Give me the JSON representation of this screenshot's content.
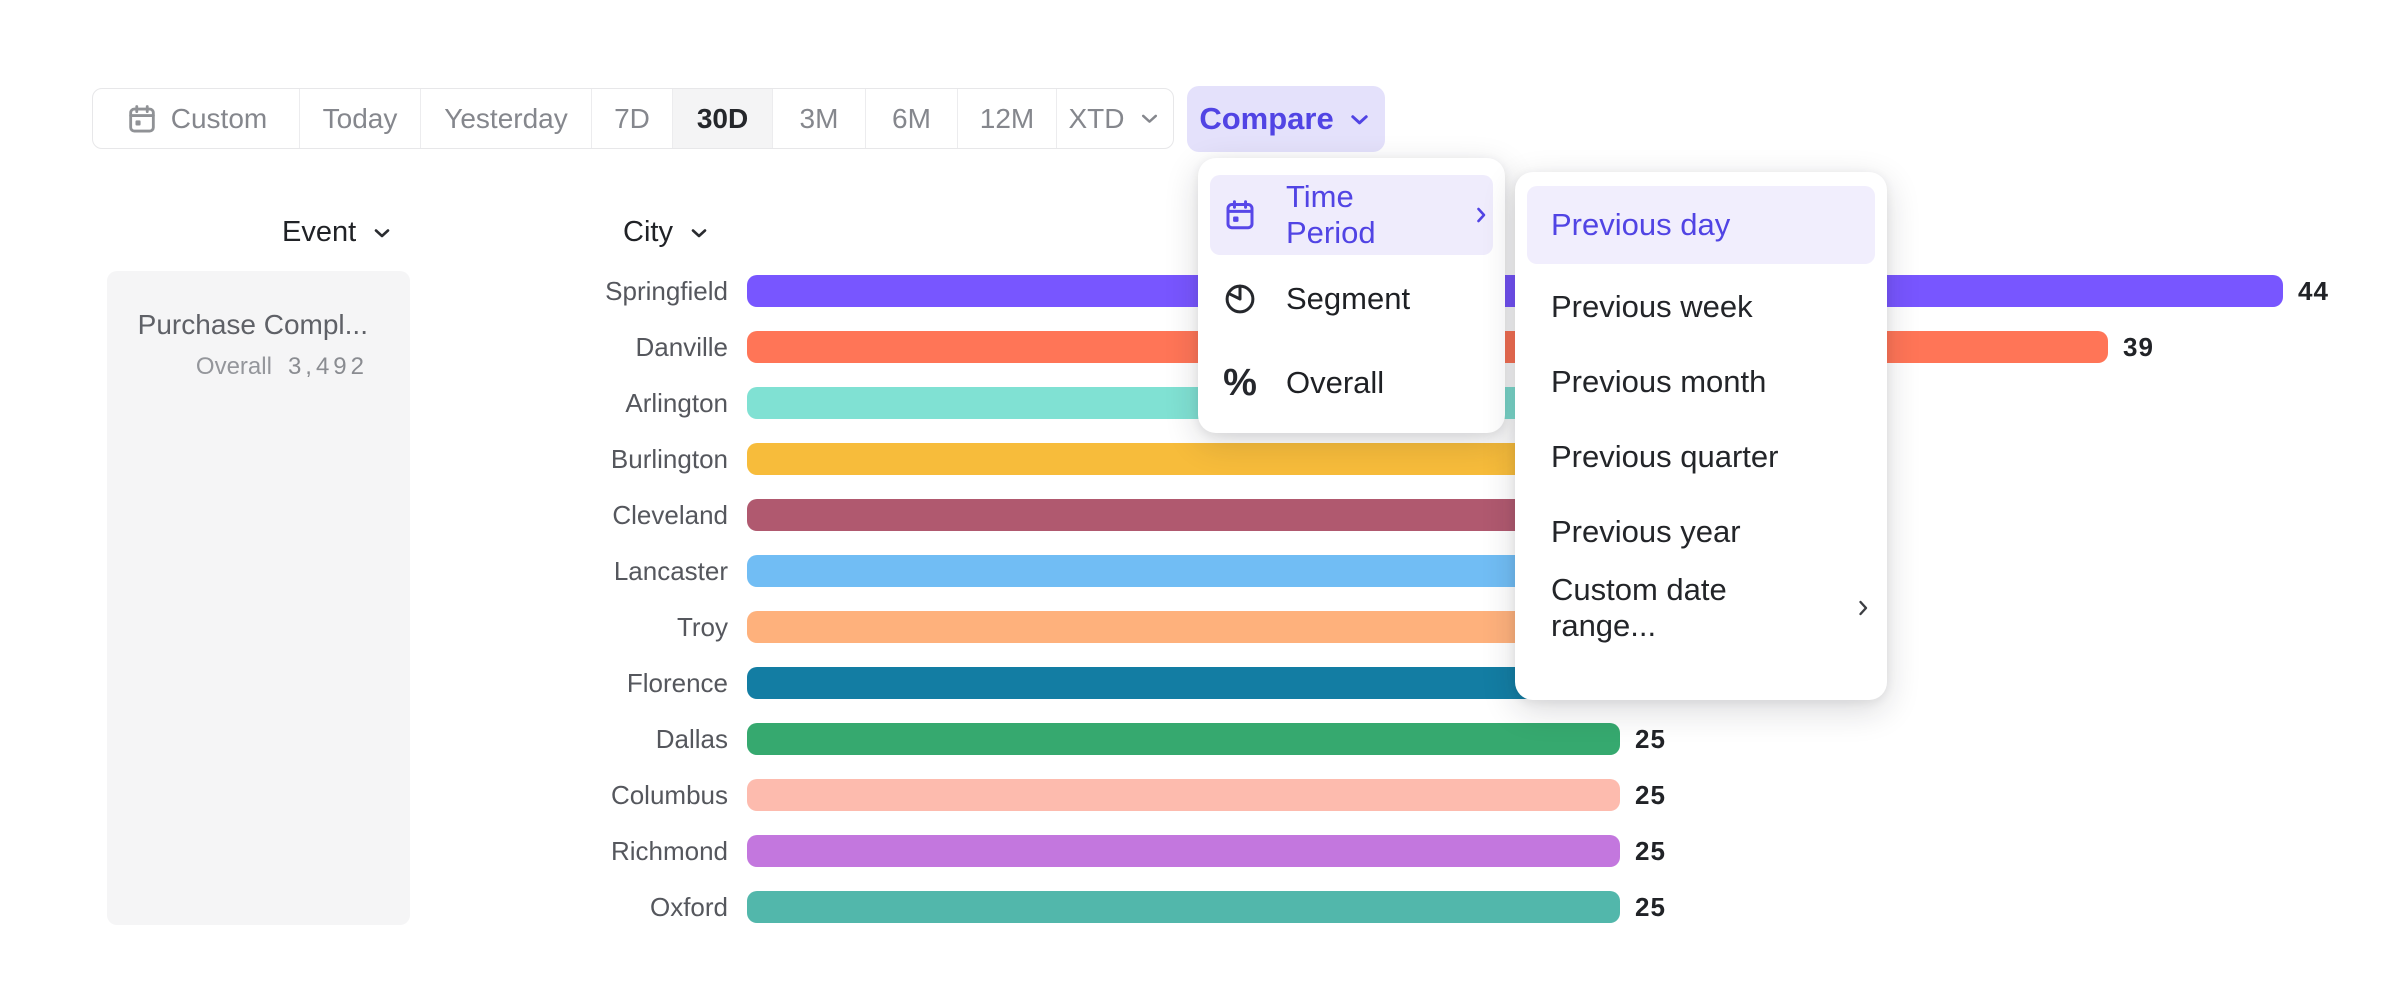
{
  "toolbar": {
    "buttons": [
      {
        "label": "Custom",
        "icon": "calendar",
        "selected": false
      },
      {
        "label": "Today",
        "selected": false
      },
      {
        "label": "Yesterday",
        "selected": false
      },
      {
        "label": "7D",
        "selected": false
      },
      {
        "label": "30D",
        "selected": true
      },
      {
        "label": "3M",
        "selected": false
      },
      {
        "label": "6M",
        "selected": false
      },
      {
        "label": "12M",
        "selected": false
      },
      {
        "label": "XTD",
        "chevron": true,
        "selected": false
      }
    ]
  },
  "compare_button": {
    "label": "Compare",
    "bg": "#e4e1fb",
    "color": "#5144e4"
  },
  "compare_menu": {
    "items": [
      {
        "label": "Time Period",
        "icon": "calendar-icon",
        "active": true,
        "has_submenu": true
      },
      {
        "label": "Segment",
        "icon": "segment-icon",
        "active": false
      },
      {
        "label": "Overall",
        "icon": "percent-icon",
        "active": false
      }
    ]
  },
  "time_period_submenu": {
    "items": [
      {
        "label": "Previous day",
        "active": true
      },
      {
        "label": "Previous week",
        "active": false
      },
      {
        "label": "Previous month",
        "active": false
      },
      {
        "label": "Previous quarter",
        "active": false
      },
      {
        "label": "Previous year",
        "active": false
      },
      {
        "label": "Custom date range...",
        "active": false,
        "has_submenu": true
      }
    ]
  },
  "event_panel": {
    "header": "Event",
    "event_name": "Purchase Compl...",
    "overall_label": "Overall",
    "overall_value": "3,492"
  },
  "chart": {
    "header": "City",
    "rows": [
      {
        "city": "Springfield",
        "color": "#7856FF",
        "bar_units": 44,
        "value_label": "44"
      },
      {
        "city": "Danville",
        "color": "#FF7557",
        "bar_units": 39,
        "value_label": "39"
      },
      {
        "city": "Arlington",
        "color": "#80E1D3",
        "bar_units": 32,
        "value_label": ""
      },
      {
        "city": "Burlington",
        "color": "#F7BC3B",
        "bar_units": 31,
        "value_label": ""
      },
      {
        "city": "Cleveland",
        "color": "#B0596F",
        "bar_units": 30,
        "value_label": ""
      },
      {
        "city": "Lancaster",
        "color": "#71BDF4",
        "bar_units": 29,
        "value_label": ""
      },
      {
        "city": "Troy",
        "color": "#FEB17C",
        "bar_units": 28,
        "value_label": ""
      },
      {
        "city": "Florence",
        "color": "#137DA3",
        "bar_units": 27,
        "value_label": ""
      },
      {
        "city": "Dallas",
        "color": "#36A96F",
        "bar_units": 25,
        "value_label": "25"
      },
      {
        "city": "Columbus",
        "color": "#FDBBAE",
        "bar_units": 25,
        "value_label": "25"
      },
      {
        "city": "Richmond",
        "color": "#C377DE",
        "bar_units": 25,
        "value_label": "25"
      },
      {
        "city": "Oxford",
        "color": "#52B7AB",
        "bar_units": 25,
        "value_label": "25"
      }
    ]
  },
  "chart_data": {
    "type": "bar",
    "orientation": "horizontal",
    "categories": [
      "Springfield",
      "Danville",
      "Arlington",
      "Burlington",
      "Cleveland",
      "Lancaster",
      "Troy",
      "Florence",
      "Dallas",
      "Columbus",
      "Richmond",
      "Oxford"
    ],
    "values": [
      44,
      39,
      null,
      null,
      null,
      null,
      null,
      null,
      25,
      25,
      25,
      25
    ],
    "visible_value_labels": {
      "Springfield": 44,
      "Danville": 39,
      "Dallas": 25,
      "Columbus": 25,
      "Richmond": 25,
      "Oxford": 25
    },
    "hidden_by_open_menu": [
      "Arlington",
      "Burlington",
      "Cleveland",
      "Lancaster",
      "Troy",
      "Florence"
    ],
    "series_colors": [
      "#7856FF",
      "#FF7557",
      "#80E1D3",
      "#F7BC3B",
      "#B0596F",
      "#71BDF4",
      "#FEB17C",
      "#137DA3",
      "#36A96F",
      "#FDBBAE",
      "#C377DE",
      "#52B7AB"
    ],
    "xlabel": "",
    "ylabel": "City",
    "grid": false,
    "legend": false
  }
}
